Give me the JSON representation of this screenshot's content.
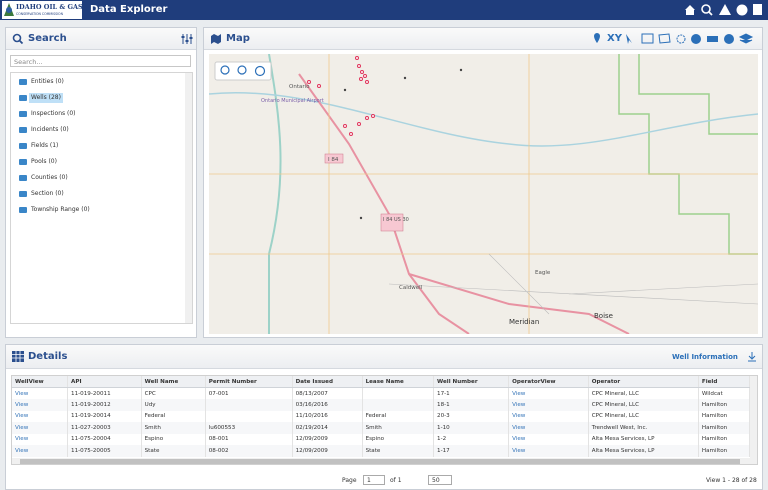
{
  "header": {
    "logo_title": "IDAHO OIL & GAS",
    "logo_subtitle": "CONSERVATION COMMISSION",
    "app_title": "Data Explorer"
  },
  "search": {
    "title": "Search",
    "placeholder": "Search...",
    "tree": [
      "Entities (0)",
      "Wells (28)",
      "Inspections (0)",
      "Incidents (0)",
      "Fields (1)",
      "Pools (0)",
      "Counties (0)",
      "Section (0)",
      "Township Range (0)"
    ]
  },
  "map": {
    "title": "Map",
    "xy_button": "XY",
    "labels": [
      "Ontario",
      "Ontario Municipal Airport",
      "I 84",
      "I 84 US 30",
      "Eagle",
      "Caldwell",
      "Meridian",
      "Boise"
    ]
  },
  "details": {
    "title": "Details",
    "link": "Well Information",
    "table": {
      "columns": [
        "WellView",
        "API",
        "Well Name",
        "Permit Number",
        "Date Issued",
        "Lease Name",
        "Well Number",
        "OperatorView",
        "Operator",
        "Field"
      ],
      "rows": [
        [
          "View",
          "11-019-20011",
          "CPC",
          "07-001",
          "08/13/2007",
          null,
          "17-1",
          "View",
          "CPC Mineral, LLC",
          "Wildcat"
        ],
        [
          "View",
          "11-019-20012",
          "Udy",
          null,
          "03/16/2016",
          null,
          "18-1",
          "View",
          "CPC Mineral, LLC",
          "Hamilton"
        ],
        [
          "View",
          "11-019-20014",
          "Federal",
          null,
          "11/10/2016",
          "Federal",
          "20-3",
          "View",
          "CPC Mineral, LLC",
          "Hamilton"
        ],
        [
          "View",
          "11-027-20003",
          "Smith",
          "lu600553",
          "02/19/2014",
          "Smith",
          "1-10",
          "View",
          "Trendwell West, Inc.",
          "Hamilton"
        ],
        [
          "View",
          "11-075-20004",
          "Espino",
          "08-001",
          "12/09/2009",
          "Espino",
          "1-2",
          "View",
          "Alta Mesa Services, LP",
          "Hamilton"
        ],
        [
          "View",
          "11-075-20005",
          "State",
          "08-002",
          "12/09/2009",
          "State",
          "1-17",
          "View",
          "Alta Mesa Services, LP",
          "Hamilton"
        ]
      ]
    },
    "pager": {
      "page_label": "Page",
      "page_value": "1",
      "of_label": "of 1",
      "page_size": "50",
      "summary": "View 1 - 28 of 28"
    }
  }
}
